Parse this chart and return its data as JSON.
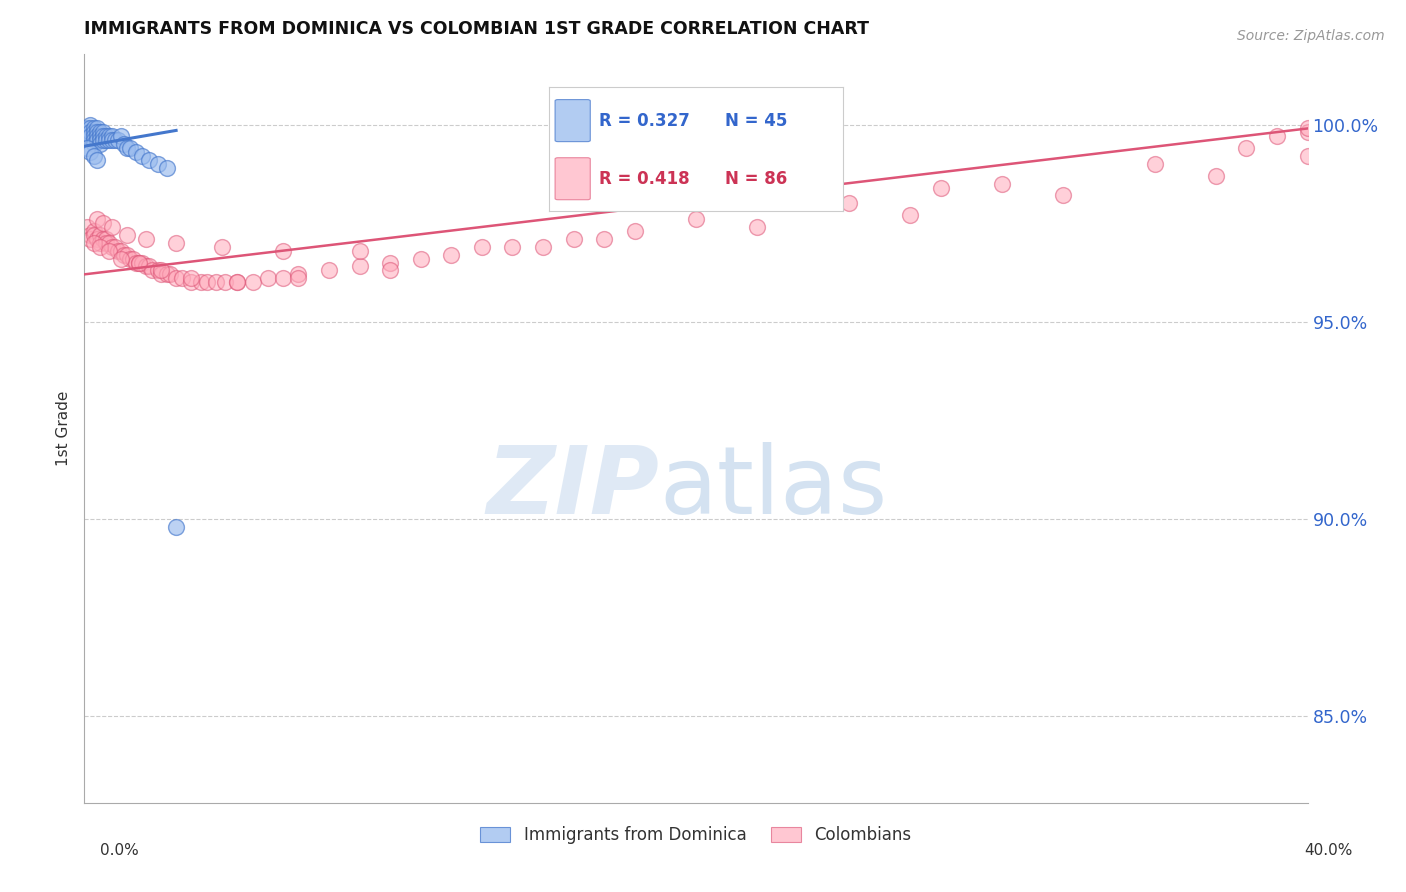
{
  "title": "IMMIGRANTS FROM DOMINICA VS COLOMBIAN 1ST GRADE CORRELATION CHART",
  "source": "Source: ZipAtlas.com",
  "ylabel": "1st Grade",
  "xmin": 0.0,
  "xmax": 0.4,
  "ymin": 0.828,
  "ymax": 1.018,
  "yticks": [
    0.85,
    0.9,
    0.95,
    1.0
  ],
  "ytick_labels": [
    "85.0%",
    "90.0%",
    "95.0%",
    "100.0%"
  ],
  "blue_R": 0.327,
  "blue_N": 45,
  "pink_R": 0.418,
  "pink_N": 86,
  "blue_color": "#99BBEE",
  "pink_color": "#FFAABB",
  "blue_line_color": "#4477CC",
  "pink_line_color": "#DD5577",
  "watermark_zip": "ZIP",
  "watermark_atlas": "atlas",
  "watermark_color_zip": "#C8DCF0",
  "watermark_color_atlas": "#A8C8E8",
  "blue_scatter_x": [
    0.001,
    0.001,
    0.001,
    0.002,
    0.002,
    0.002,
    0.002,
    0.003,
    0.003,
    0.003,
    0.003,
    0.003,
    0.004,
    0.004,
    0.004,
    0.004,
    0.005,
    0.005,
    0.005,
    0.005,
    0.006,
    0.006,
    0.006,
    0.007,
    0.007,
    0.008,
    0.008,
    0.009,
    0.009,
    0.01,
    0.011,
    0.012,
    0.013,
    0.014,
    0.015,
    0.017,
    0.019,
    0.021,
    0.024,
    0.027,
    0.001,
    0.002,
    0.003,
    0.004,
    0.03
  ],
  "blue_scatter_y": [
    0.999,
    0.998,
    0.997,
    1.0,
    0.999,
    0.998,
    0.997,
    0.999,
    0.998,
    0.997,
    0.996,
    0.995,
    0.999,
    0.998,
    0.997,
    0.996,
    0.998,
    0.997,
    0.996,
    0.995,
    0.998,
    0.997,
    0.996,
    0.997,
    0.996,
    0.997,
    0.996,
    0.997,
    0.996,
    0.996,
    0.996,
    0.997,
    0.995,
    0.994,
    0.994,
    0.993,
    0.992,
    0.991,
    0.99,
    0.989,
    0.994,
    0.993,
    0.992,
    0.991,
    0.898
  ],
  "pink_scatter_x": [
    0.001,
    0.002,
    0.002,
    0.003,
    0.003,
    0.004,
    0.005,
    0.005,
    0.006,
    0.007,
    0.007,
    0.008,
    0.009,
    0.01,
    0.011,
    0.012,
    0.013,
    0.014,
    0.015,
    0.016,
    0.017,
    0.018,
    0.019,
    0.02,
    0.021,
    0.022,
    0.024,
    0.025,
    0.027,
    0.028,
    0.03,
    0.032,
    0.035,
    0.038,
    0.04,
    0.043,
    0.046,
    0.05,
    0.055,
    0.06,
    0.065,
    0.07,
    0.08,
    0.09,
    0.1,
    0.11,
    0.12,
    0.14,
    0.16,
    0.18,
    0.003,
    0.005,
    0.008,
    0.012,
    0.018,
    0.025,
    0.035,
    0.05,
    0.07,
    0.1,
    0.004,
    0.006,
    0.009,
    0.014,
    0.02,
    0.03,
    0.045,
    0.065,
    0.09,
    0.13,
    0.17,
    0.22,
    0.27,
    0.32,
    0.37,
    0.4,
    0.2,
    0.25,
    0.3,
    0.35,
    0.38,
    0.4,
    0.15,
    0.28,
    0.4,
    0.39
  ],
  "pink_scatter_y": [
    0.974,
    0.972,
    0.971,
    0.973,
    0.972,
    0.971,
    0.972,
    0.97,
    0.971,
    0.971,
    0.97,
    0.97,
    0.969,
    0.969,
    0.968,
    0.968,
    0.967,
    0.967,
    0.966,
    0.966,
    0.965,
    0.965,
    0.965,
    0.964,
    0.964,
    0.963,
    0.963,
    0.962,
    0.962,
    0.962,
    0.961,
    0.961,
    0.96,
    0.96,
    0.96,
    0.96,
    0.96,
    0.96,
    0.96,
    0.961,
    0.961,
    0.962,
    0.963,
    0.964,
    0.965,
    0.966,
    0.967,
    0.969,
    0.971,
    0.973,
    0.97,
    0.969,
    0.968,
    0.966,
    0.965,
    0.963,
    0.961,
    0.96,
    0.961,
    0.963,
    0.976,
    0.975,
    0.974,
    0.972,
    0.971,
    0.97,
    0.969,
    0.968,
    0.968,
    0.969,
    0.971,
    0.974,
    0.977,
    0.982,
    0.987,
    0.992,
    0.976,
    0.98,
    0.985,
    0.99,
    0.994,
    0.998,
    0.969,
    0.984,
    0.999,
    0.997
  ],
  "blue_trendline_x": [
    0.0,
    0.03
  ],
  "blue_trendline_y": [
    0.9945,
    0.9985
  ],
  "pink_trendline_x": [
    0.0,
    0.4
  ],
  "pink_trendline_y": [
    0.962,
    0.999
  ]
}
